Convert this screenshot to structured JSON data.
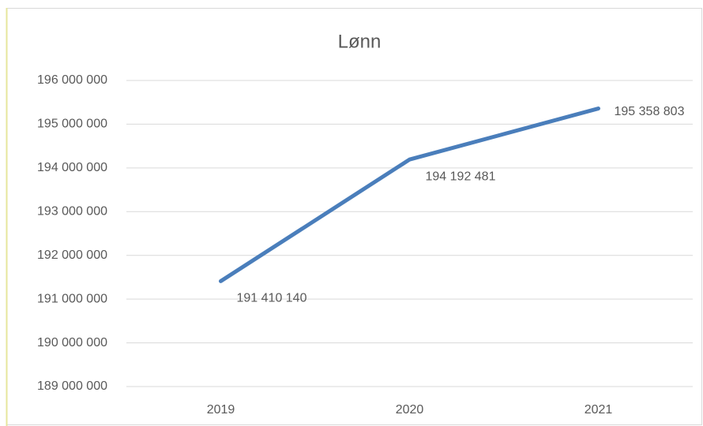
{
  "chart_data": {
    "type": "line",
    "title": "Lønn",
    "categories": [
      "2019",
      "2020",
      "2021"
    ],
    "series": [
      {
        "name": "Lønn",
        "color": "#4a7ebb",
        "values": [
          191410140,
          194192481,
          195358803
        ],
        "value_labels": [
          "191 410 140",
          "194 192 481",
          "195 358 803"
        ]
      }
    ],
    "ylim": [
      189000000,
      196000000
    ],
    "yticks": [
      {
        "value": 189000000,
        "label": "189 000 000"
      },
      {
        "value": 190000000,
        "label": "190 000 000"
      },
      {
        "value": 191000000,
        "label": "191 000 000"
      },
      {
        "value": 192000000,
        "label": "192 000 000"
      },
      {
        "value": 193000000,
        "label": "193 000 000"
      },
      {
        "value": 194000000,
        "label": "194 000 000"
      },
      {
        "value": 195000000,
        "label": "195 000 000"
      },
      {
        "value": 196000000,
        "label": "196 000 000"
      }
    ],
    "grid": true
  }
}
